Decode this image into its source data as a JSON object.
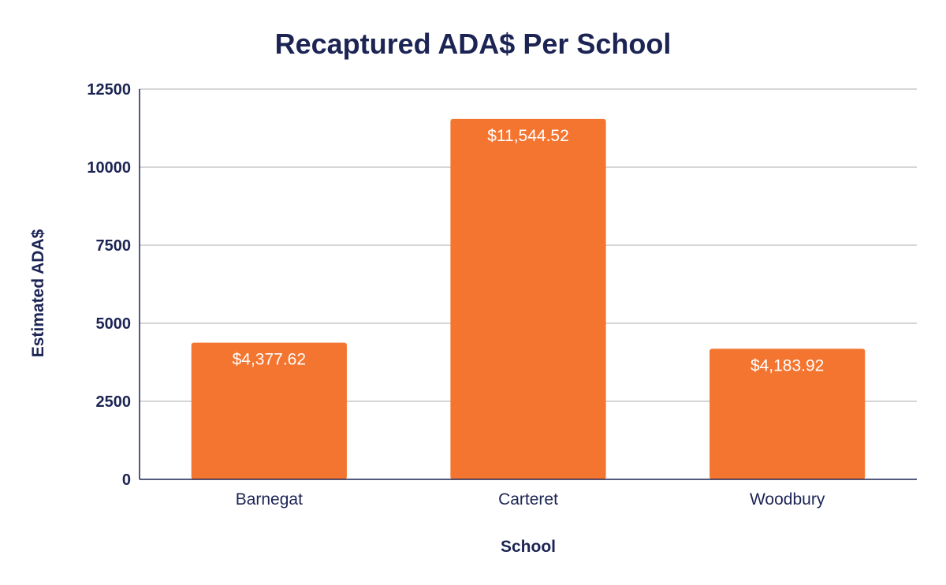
{
  "chart_data": {
    "type": "bar",
    "title": "Recaptured ADA$ Per School",
    "xlabel": "School",
    "ylabel": "Estimated ADA$",
    "categories": [
      "Barnegat",
      "Carteret",
      "Woodbury"
    ],
    "values": [
      4377.62,
      11544.52,
      4183.92
    ],
    "data_labels": [
      "$4,377.62",
      "$11,544.52",
      "$4,183.92"
    ],
    "yticks": [
      0,
      2500,
      5000,
      7500,
      10000,
      12500
    ],
    "ylim": [
      0,
      12500
    ],
    "grid": true,
    "legend": "none",
    "bar_color": "#f47530"
  }
}
